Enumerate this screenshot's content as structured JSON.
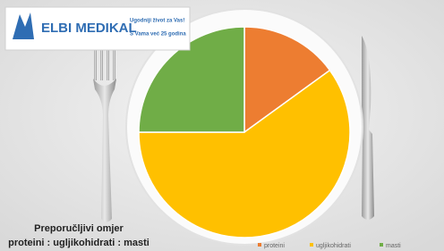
{
  "logo": {
    "brand": "ELBI MEDIKAL",
    "tagline": [
      "Ugodniji život za Vas!",
      "S Vama već 25 godina"
    ]
  },
  "chart_data": {
    "type": "pie",
    "title": "Preporučljivi omjer",
    "subtitle": "proteini : ugljikohidrati : masti",
    "categories": [
      "proteini",
      "ugljikohidrati",
      "masti"
    ],
    "values": [
      15,
      60,
      25
    ],
    "colors": [
      "#ed7d31",
      "#ffc000",
      "#70ad47"
    ],
    "legend": "bottom-right"
  }
}
